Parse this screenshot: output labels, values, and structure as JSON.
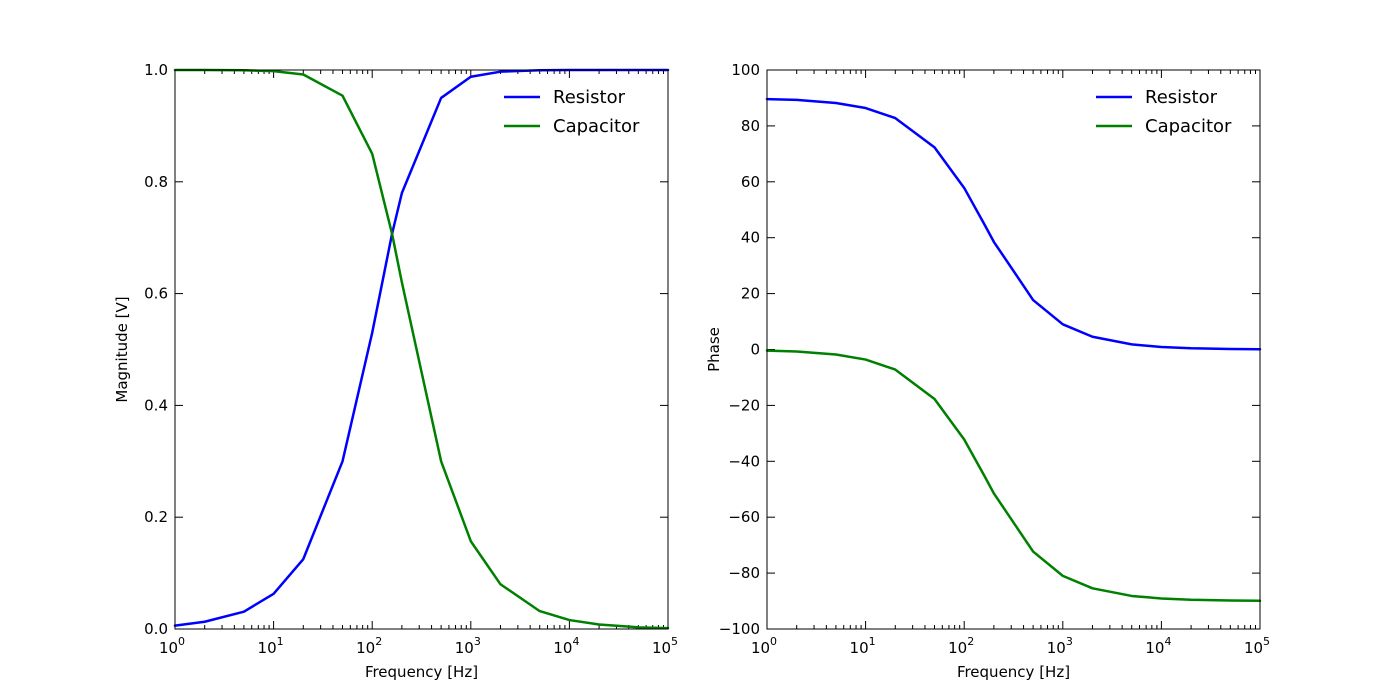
{
  "chart_data": [
    {
      "type": "line",
      "xlabel": "Frequency [Hz]",
      "ylabel": "Magnitude [V]",
      "xscale": "log",
      "xlim": [
        1,
        100000
      ],
      "ylim": [
        0,
        1.0
      ],
      "x": [
        1,
        2,
        5,
        10,
        20,
        50,
        100,
        159,
        200,
        500,
        1000,
        2000,
        5000,
        10000,
        20000,
        50000,
        100000
      ],
      "xticks": [
        1,
        10,
        100,
        1000,
        10000,
        100000
      ],
      "xtick_labels": [
        {
          "base": "10",
          "exp": "0"
        },
        {
          "base": "10",
          "exp": "1"
        },
        {
          "base": "10",
          "exp": "2"
        },
        {
          "base": "10",
          "exp": "3"
        },
        {
          "base": "10",
          "exp": "4"
        },
        {
          "base": "10",
          "exp": "5"
        }
      ],
      "yticks": [
        0,
        0.2,
        0.4,
        0.6,
        0.8,
        1.0
      ],
      "ytick_labels": [
        "0.0",
        "0.2",
        "0.4",
        "0.6",
        "0.8",
        "1.0"
      ],
      "grid": false,
      "legend": {
        "position": "top-right"
      },
      "series": [
        {
          "name": "Resistor",
          "color": "#0000ff",
          "values": [
            0.006,
            0.013,
            0.031,
            0.063,
            0.125,
            0.3,
            0.53,
            0.707,
            0.78,
            0.95,
            0.988,
            0.997,
            0.9995,
            1.0,
            1.0,
            1.0,
            1.0
          ]
        },
        {
          "name": "Capacitor",
          "color": "#008000",
          "values": [
            1.0,
            1.0,
            0.9995,
            0.998,
            0.992,
            0.954,
            0.85,
            0.707,
            0.62,
            0.3,
            0.157,
            0.08,
            0.032,
            0.016,
            0.008,
            0.003,
            0.0016
          ]
        }
      ]
    },
    {
      "type": "line",
      "xlabel": "Frequency [Hz]",
      "ylabel": "Phase",
      "xscale": "log",
      "xlim": [
        1,
        100000
      ],
      "ylim": [
        -100,
        100
      ],
      "x": [
        1,
        2,
        5,
        10,
        20,
        50,
        100,
        159,
        200,
        500,
        1000,
        2000,
        5000,
        10000,
        20000,
        50000,
        100000
      ],
      "xticks": [
        1,
        10,
        100,
        1000,
        10000,
        100000
      ],
      "xtick_labels": [
        {
          "base": "10",
          "exp": "0"
        },
        {
          "base": "10",
          "exp": "1"
        },
        {
          "base": "10",
          "exp": "2"
        },
        {
          "base": "10",
          "exp": "3"
        },
        {
          "base": "10",
          "exp": "4"
        },
        {
          "base": "10",
          "exp": "5"
        }
      ],
      "yticks": [
        -100,
        -80,
        -60,
        -40,
        -20,
        0,
        20,
        40,
        60,
        80,
        100
      ],
      "ytick_labels": [
        "−100",
        "−80",
        "−60",
        "−40",
        "−20",
        "0",
        "20",
        "40",
        "60",
        "80",
        "100"
      ],
      "grid": false,
      "legend": {
        "position": "top-right"
      },
      "series": [
        {
          "name": "Resistor",
          "color": "#0000ff",
          "values": [
            89.6,
            89.3,
            88.2,
            86.4,
            82.8,
            72.3,
            57.8,
            45.0,
            38.5,
            17.7,
            9.0,
            4.55,
            1.82,
            0.91,
            0.45,
            0.18,
            0.09
          ]
        },
        {
          "name": "Capacitor",
          "color": "#008000",
          "values": [
            -0.4,
            -0.7,
            -1.8,
            -3.6,
            -7.2,
            -17.7,
            -32.2,
            -45.0,
            -51.5,
            -72.3,
            -81.0,
            -85.45,
            -88.18,
            -89.09,
            -89.55,
            -89.82,
            -89.91
          ]
        }
      ]
    }
  ]
}
